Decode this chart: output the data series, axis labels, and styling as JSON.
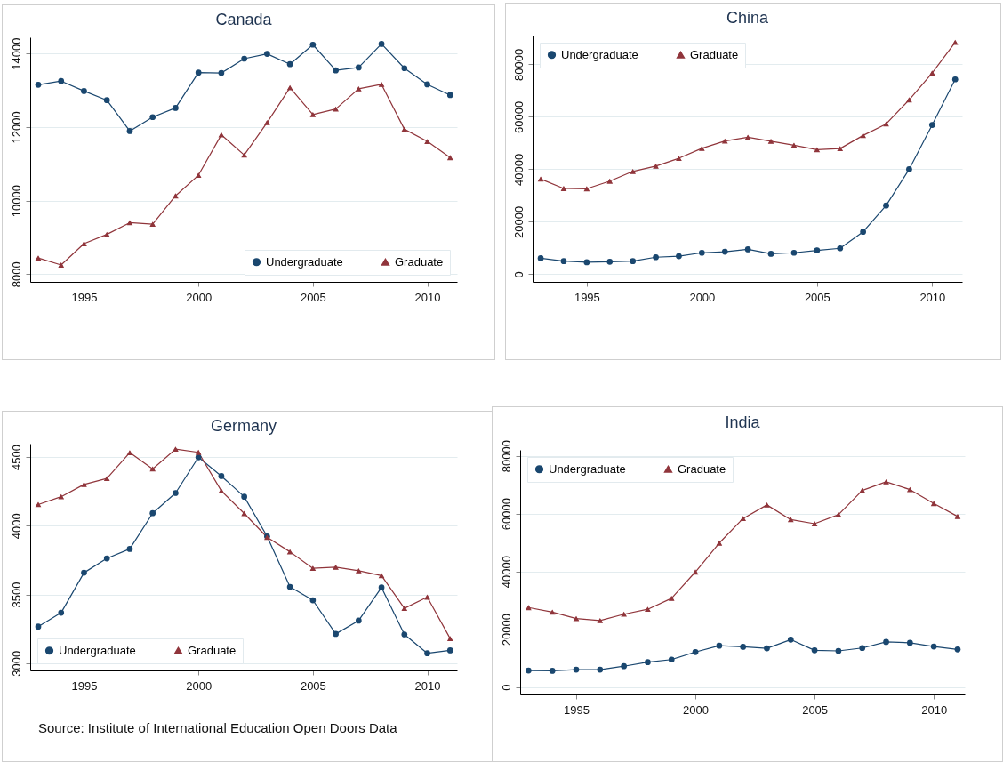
{
  "chart_data": [
    {
      "type": "line",
      "title": "Canada",
      "x": [
        1993,
        1994,
        1995,
        1996,
        1997,
        1998,
        1999,
        2000,
        2001,
        2002,
        2003,
        2004,
        2005,
        2006,
        2007,
        2008,
        2009,
        2010,
        2011
      ],
      "xlim": [
        1992.65,
        2011.3
      ],
      "xticks": [
        1995,
        2000,
        2005,
        2010
      ],
      "ylim": [
        7790,
        14440
      ],
      "yticks": [
        8000,
        10000,
        12000,
        14000
      ],
      "grid": "y",
      "legend": "bottom right",
      "series": [
        {
          "name": "Undergraduate",
          "color": "#1a476f",
          "marker": "circle",
          "values": [
            13150,
            13250,
            12980,
            12730,
            11890,
            12270,
            12520,
            13480,
            13470,
            13860,
            13990,
            13710,
            14240,
            13540,
            13620,
            14260,
            13600,
            13160,
            12870
          ]
        },
        {
          "name": "Graduate",
          "color": "#90353b",
          "marker": "triangle",
          "values": [
            8440,
            8250,
            8830,
            9080,
            9400,
            9360,
            10130,
            10690,
            11790,
            11240,
            12120,
            13070,
            12340,
            12490,
            13040,
            13160,
            11940,
            11610,
            11170
          ]
        }
      ]
    },
    {
      "type": "line",
      "title": "China",
      "x": [
        1993,
        1994,
        1995,
        1996,
        1997,
        1998,
        1999,
        2000,
        2001,
        2002,
        2003,
        2004,
        2005,
        2006,
        2007,
        2008,
        2009,
        2010,
        2011
      ],
      "xlim": [
        1992.65,
        2011.3
      ],
      "xticks": [
        1995,
        2000,
        2005,
        2010
      ],
      "ylim": [
        -2900,
        91000
      ],
      "yticks": [
        0,
        20000,
        40000,
        60000,
        80000
      ],
      "grid": "y",
      "legend": "top left",
      "series": [
        {
          "name": "Undergraduate",
          "color": "#1a476f",
          "marker": "circle",
          "values": [
            6100,
            5000,
            4600,
            4800,
            5000,
            6500,
            6900,
            8200,
            8600,
            9500,
            7800,
            8200,
            9100,
            9900,
            16200,
            26200,
            40000,
            56900,
            74300
          ]
        },
        {
          "name": "Graduate",
          "color": "#90353b",
          "marker": "triangle",
          "values": [
            36300,
            32700,
            32600,
            35500,
            39200,
            41200,
            44200,
            48000,
            50800,
            52200,
            50700,
            49200,
            47500,
            47900,
            52900,
            57300,
            66500,
            76700,
            88400
          ]
        }
      ]
    },
    {
      "type": "line",
      "title": "Germany",
      "x": [
        1993,
        1994,
        1995,
        1996,
        1997,
        1998,
        1999,
        2000,
        2001,
        2002,
        2003,
        2004,
        2005,
        2006,
        2007,
        2008,
        2009,
        2010,
        2011
      ],
      "xlim": [
        1992.65,
        2011.3
      ],
      "xticks": [
        1995,
        2000,
        2005,
        2010
      ],
      "ylim": [
        2947,
        4597
      ],
      "yticks": [
        3000,
        3500,
        4000,
        4500
      ],
      "grid": "y",
      "legend": "bottom left",
      "annotations": [
        "Source: Institute of International Education Open Doors Data"
      ],
      "series": [
        {
          "name": "Undergraduate",
          "color": "#1a476f",
          "marker": "circle",
          "values": [
            3266,
            3367,
            3658,
            3762,
            3831,
            4091,
            4238,
            4498,
            4361,
            4211,
            3922,
            3555,
            3458,
            3213,
            3310,
            3551,
            3209,
            3072,
            3093
          ]
        },
        {
          "name": "Graduate",
          "color": "#90353b",
          "marker": "triangle",
          "values": [
            4154,
            4211,
            4300,
            4344,
            4532,
            4413,
            4557,
            4534,
            4253,
            4089,
            3916,
            3810,
            3690,
            3698,
            3673,
            3637,
            3399,
            3481,
            3179
          ]
        }
      ]
    },
    {
      "type": "line",
      "title": "India",
      "x": [
        1993,
        1994,
        1995,
        1996,
        1997,
        1998,
        1999,
        2000,
        2001,
        2002,
        2003,
        2004,
        2005,
        2006,
        2007,
        2008,
        2009,
        2010,
        2011
      ],
      "xlim": [
        1992.65,
        2011.3
      ],
      "xticks": [
        1995,
        2000,
        2005,
        2010
      ],
      "ylim": [
        -2580,
        82040
      ],
      "yticks": [
        0,
        20000,
        40000,
        60000,
        80000
      ],
      "grid": "y",
      "legend": "top left",
      "series": [
        {
          "name": "Undergraduate",
          "color": "#1a476f",
          "marker": "circle",
          "values": [
            5700,
            5600,
            6000,
            6000,
            7200,
            8600,
            9500,
            12100,
            14300,
            13900,
            13400,
            16400,
            12700,
            12500,
            13500,
            15600,
            15300,
            14000,
            13000
          ]
        },
        {
          "name": "Graduate",
          "color": "#90353b",
          "marker": "triangle",
          "values": [
            27500,
            25900,
            23700,
            23000,
            25200,
            26900,
            30700,
            39800,
            49800,
            58300,
            63000,
            57900,
            56500,
            59600,
            68000,
            71000,
            68300,
            63500,
            59000
          ]
        }
      ]
    }
  ]
}
